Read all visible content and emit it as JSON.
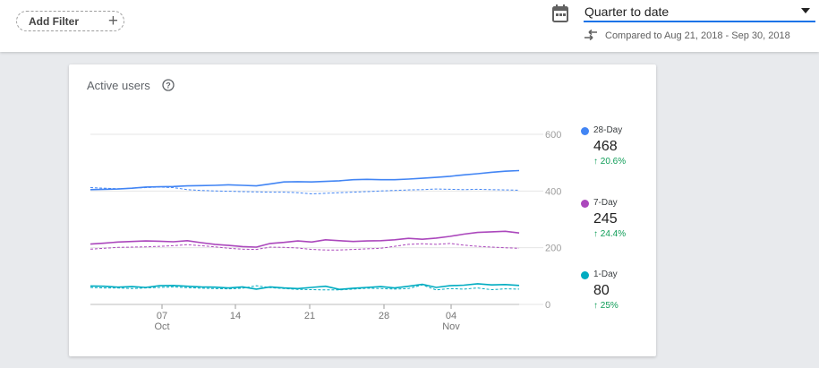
{
  "toolbar": {
    "add_filter_label": "Add Filter",
    "date_range_value": "Quarter to date",
    "compared_text": "Compared to Aug 21, 2018 - Sep 30, 2018"
  },
  "card": {
    "title": "Active users",
    "legend": [
      {
        "name": "28-Day",
        "value": "468",
        "change": "20.6%",
        "color": "#4285f4"
      },
      {
        "name": "7-Day",
        "value": "245",
        "change": "24.4%",
        "color": "#ab47bc"
      },
      {
        "name": "1-Day",
        "value": "80",
        "change": "25%",
        "color": "#00acc1"
      }
    ]
  },
  "chart_data": {
    "type": "line",
    "x_ticks": [
      {
        "day": "07",
        "month": "Oct"
      },
      {
        "day": "14",
        "month": ""
      },
      {
        "day": "21",
        "month": ""
      },
      {
        "day": "28",
        "month": ""
      },
      {
        "day": "04",
        "month": "Nov"
      }
    ],
    "y_ticks": [
      "600",
      "400",
      "200",
      "0"
    ],
    "ylim": [
      0,
      600
    ],
    "grid": true,
    "legend_position": "right",
    "series": [
      {
        "name": "28-Day",
        "color": "#4285f4",
        "style": "solid",
        "values": [
          405,
          406,
          407,
          410,
          414,
          415,
          416,
          418,
          419,
          420,
          422,
          420,
          418,
          425,
          432,
          433,
          432,
          434,
          436,
          440,
          441,
          440,
          440,
          442,
          445,
          448,
          452,
          457,
          461,
          466,
          470,
          472
        ]
      },
      {
        "name": "28-Day",
        "color": "#4285f4",
        "style": "dashed",
        "values": [
          412,
          410,
          408,
          410,
          412,
          414,
          412,
          405,
          402,
          400,
          399,
          398,
          397,
          396,
          396,
          394,
          390,
          392,
          394,
          396,
          398,
          400,
          402,
          404,
          405,
          407,
          406,
          405,
          406,
          405,
          404,
          403
        ]
      },
      {
        "name": "7-Day",
        "color": "#ab47bc",
        "style": "solid",
        "values": [
          213,
          216,
          220,
          222,
          224,
          223,
          221,
          225,
          218,
          212,
          208,
          204,
          202,
          215,
          219,
          224,
          220,
          228,
          225,
          222,
          224,
          225,
          228,
          233,
          230,
          234,
          240,
          248,
          254,
          256,
          258,
          252
        ]
      },
      {
        "name": "7-Day",
        "color": "#ab47bc",
        "style": "dashed",
        "values": [
          195,
          198,
          201,
          202,
          203,
          205,
          207,
          211,
          207,
          203,
          198,
          195,
          194,
          202,
          201,
          199,
          194,
          192,
          192,
          194,
          196,
          198,
          205,
          212,
          214,
          212,
          215,
          209,
          205,
          202,
          200,
          198
        ]
      },
      {
        "name": "1-Day",
        "color": "#00acc1",
        "style": "solid",
        "values": [
          65,
          64,
          61,
          63,
          60,
          66,
          67,
          64,
          62,
          61,
          58,
          62,
          54,
          62,
          58,
          56,
          60,
          64,
          53,
          57,
          60,
          63,
          58,
          64,
          71,
          60,
          66,
          68,
          73,
          69,
          70,
          67
        ]
      },
      {
        "name": "1-Day",
        "color": "#00acc1",
        "style": "dashed",
        "values": [
          60,
          58,
          58,
          56,
          58,
          60,
          62,
          59,
          57,
          56,
          55,
          57,
          66,
          59,
          56,
          53,
          52,
          51,
          51,
          54,
          57,
          56,
          54,
          56,
          69,
          51,
          56,
          54,
          58,
          52,
          55,
          54
        ]
      }
    ]
  }
}
